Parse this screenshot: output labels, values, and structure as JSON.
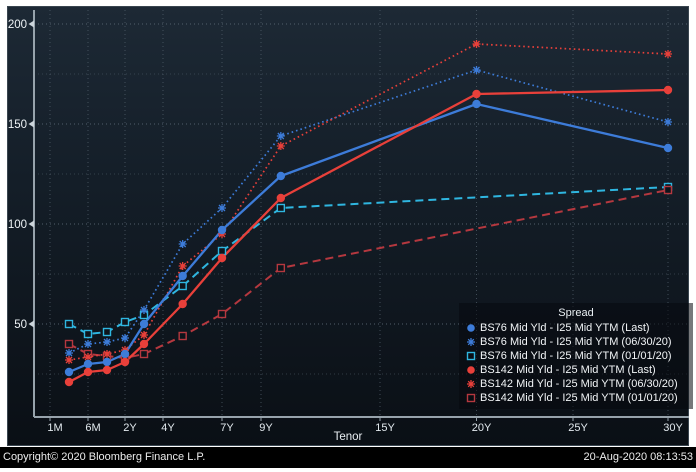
{
  "window": {
    "footer": {
      "copyright": "Copyright© 2020 Bloomberg Finance L.P.",
      "timestamp": "20-Aug-2020 08:13:53"
    }
  },
  "axes": {
    "x": {
      "label": "Tenor",
      "ticks": [
        {
          "label": "1M",
          "years": 0.0833
        },
        {
          "label": "6M",
          "years": 0.5
        },
        {
          "label": "2Y",
          "years": 2
        },
        {
          "label": "4Y",
          "years": 4
        },
        {
          "label": "7Y",
          "years": 7
        },
        {
          "label": "9Y",
          "years": 9
        },
        {
          "label": "15Y",
          "years": 15
        },
        {
          "label": "20Y",
          "years": 20
        },
        {
          "label": "25Y",
          "years": 25
        },
        {
          "label": "30Y",
          "years": 30
        }
      ]
    },
    "y": {
      "major_ticks": [
        {
          "label": "200",
          "value": 200
        },
        {
          "label": "150",
          "value": 150
        },
        {
          "label": "100",
          "value": 100
        },
        {
          "label": "50",
          "value": 50
        }
      ],
      "minor_values": [
        175,
        125,
        75,
        25
      ]
    }
  },
  "legend": {
    "title": "Spread"
  },
  "chart_data": {
    "type": "line",
    "title": "Spread",
    "xlabel": "Tenor",
    "x_unit": "tenor_years",
    "ylim": [
      0,
      210
    ],
    "grid": "dotted",
    "legend_position": "lower-right",
    "series": [
      {
        "name": "BS76 Mid Yld - I25 Mid YTM (Last)",
        "color": "#3d7cd9",
        "line": "solid",
        "marker": "circle",
        "points": [
          [
            0.25,
            26
          ],
          [
            0.5,
            30
          ],
          [
            1,
            31
          ],
          [
            2,
            35
          ],
          [
            3,
            50
          ],
          [
            5,
            74
          ],
          [
            7,
            97
          ],
          [
            10,
            124
          ],
          [
            20,
            160
          ],
          [
            30,
            138
          ]
        ]
      },
      {
        "name": "BS76 Mid Yld - I25 Mid YTM (06/30/20)",
        "color": "#3d7cd9",
        "line": "dotted",
        "marker": "asterisk",
        "points": [
          [
            0.25,
            35.5
          ],
          [
            0.5,
            40
          ],
          [
            1,
            41
          ],
          [
            2,
            43
          ],
          [
            3,
            57
          ],
          [
            5,
            90
          ],
          [
            7,
            108
          ],
          [
            10,
            144
          ],
          [
            20,
            177
          ],
          [
            30,
            151
          ]
        ]
      },
      {
        "name": "BS76 Mid Yld - I25 Mid YTM (01/01/20)",
        "color": "#2fb6e0",
        "line": "dashed",
        "marker": "square",
        "points": [
          [
            0.25,
            50
          ],
          [
            0.5,
            45
          ],
          [
            1,
            46
          ],
          [
            2,
            51
          ],
          [
            3,
            54.5
          ],
          [
            5,
            69
          ],
          [
            7,
            86.5
          ],
          [
            10,
            108
          ],
          [
            30,
            118.5
          ]
        ]
      },
      {
        "name": "BS142 Mid Yld - I25 Mid YTM (Last)",
        "color": "#e8403a",
        "line": "solid",
        "marker": "circle",
        "points": [
          [
            0.25,
            21
          ],
          [
            0.5,
            26
          ],
          [
            1,
            27
          ],
          [
            2,
            31
          ],
          [
            3,
            40
          ],
          [
            5,
            60
          ],
          [
            7,
            83
          ],
          [
            10,
            113
          ],
          [
            20,
            165
          ],
          [
            30,
            167
          ]
        ]
      },
      {
        "name": "BS142 Mid Yld - I25 Mid YTM (06/30/20)",
        "color": "#e8403a",
        "line": "dotted",
        "marker": "asterisk",
        "points": [
          [
            0.25,
            32
          ],
          [
            0.5,
            33.5
          ],
          [
            1,
            35
          ],
          [
            2,
            37
          ],
          [
            3,
            44.5
          ],
          [
            5,
            79
          ],
          [
            7,
            95
          ],
          [
            10,
            139
          ],
          [
            20,
            190
          ],
          [
            30,
            185
          ]
        ]
      },
      {
        "name": "BS142 Mid Yld - I25 Mid YTM (01/01/20)",
        "color": "#b5383f",
        "line": "dashed",
        "marker": "square",
        "points": [
          [
            0.25,
            40
          ],
          [
            0.5,
            35
          ],
          [
            1,
            34
          ],
          [
            2,
            33
          ],
          [
            3,
            35
          ],
          [
            5,
            44
          ],
          [
            7,
            55
          ],
          [
            10,
            78
          ],
          [
            30,
            117
          ]
        ]
      }
    ]
  }
}
